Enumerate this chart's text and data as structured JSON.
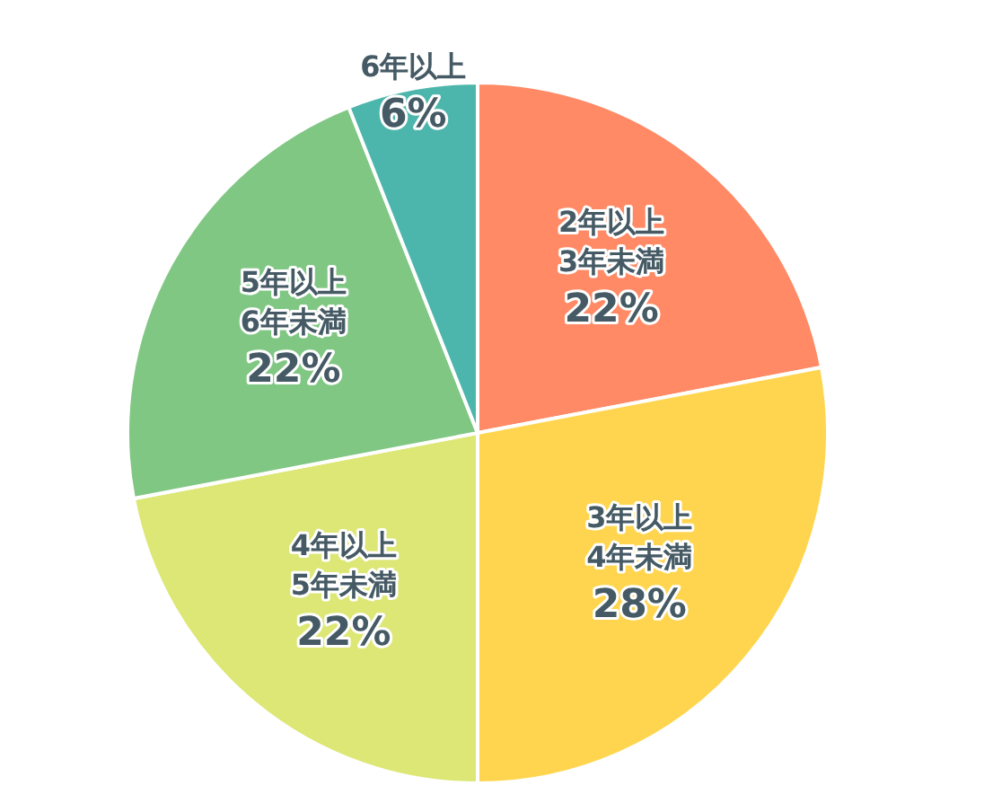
{
  "chart_data": {
    "type": "pie",
    "categories": [
      "2年以上\n3年未満",
      "3年以上\n4年未満",
      "4年以上\n5年未満",
      "5年以上\n6年未満",
      "6年以上"
    ],
    "values": [
      22,
      28,
      22,
      22,
      6
    ],
    "value_labels": [
      "22%",
      "28%",
      "22%",
      "22%",
      "6%"
    ],
    "colors": [
      "#ff8a65",
      "#ffd54f",
      "#dce775",
      "#81c784",
      "#4db6ac"
    ]
  }
}
